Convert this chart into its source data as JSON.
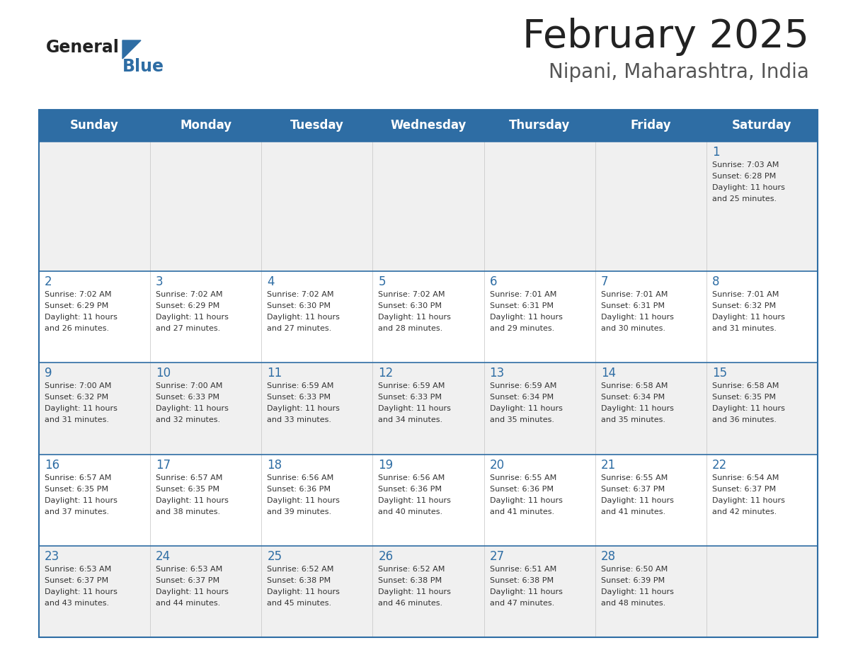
{
  "title": "February 2025",
  "subtitle": "Nipani, Maharashtra, India",
  "header_bg_color": "#2E6DA4",
  "header_text_color": "#FFFFFF",
  "cell_bg_color_odd": "#F0F0F0",
  "cell_bg_color_even": "#FFFFFF",
  "day_number_color": "#2E6DA4",
  "cell_text_color": "#333333",
  "border_color": "#2E6DA4",
  "days_of_week": [
    "Sunday",
    "Monday",
    "Tuesday",
    "Wednesday",
    "Thursday",
    "Friday",
    "Saturday"
  ],
  "calendar_data": [
    [
      null,
      null,
      null,
      null,
      null,
      null,
      {
        "day": 1,
        "sunrise": "7:03 AM",
        "sunset": "6:28 PM",
        "daylight": "11 hours and 25 minutes."
      }
    ],
    [
      {
        "day": 2,
        "sunrise": "7:02 AM",
        "sunset": "6:29 PM",
        "daylight": "11 hours and 26 minutes."
      },
      {
        "day": 3,
        "sunrise": "7:02 AM",
        "sunset": "6:29 PM",
        "daylight": "11 hours and 27 minutes."
      },
      {
        "day": 4,
        "sunrise": "7:02 AM",
        "sunset": "6:30 PM",
        "daylight": "11 hours and 27 minutes."
      },
      {
        "day": 5,
        "sunrise": "7:02 AM",
        "sunset": "6:30 PM",
        "daylight": "11 hours and 28 minutes."
      },
      {
        "day": 6,
        "sunrise": "7:01 AM",
        "sunset": "6:31 PM",
        "daylight": "11 hours and 29 minutes."
      },
      {
        "day": 7,
        "sunrise": "7:01 AM",
        "sunset": "6:31 PM",
        "daylight": "11 hours and 30 minutes."
      },
      {
        "day": 8,
        "sunrise": "7:01 AM",
        "sunset": "6:32 PM",
        "daylight": "11 hours and 31 minutes."
      }
    ],
    [
      {
        "day": 9,
        "sunrise": "7:00 AM",
        "sunset": "6:32 PM",
        "daylight": "11 hours and 31 minutes."
      },
      {
        "day": 10,
        "sunrise": "7:00 AM",
        "sunset": "6:33 PM",
        "daylight": "11 hours and 32 minutes."
      },
      {
        "day": 11,
        "sunrise": "6:59 AM",
        "sunset": "6:33 PM",
        "daylight": "11 hours and 33 minutes."
      },
      {
        "day": 12,
        "sunrise": "6:59 AM",
        "sunset": "6:33 PM",
        "daylight": "11 hours and 34 minutes."
      },
      {
        "day": 13,
        "sunrise": "6:59 AM",
        "sunset": "6:34 PM",
        "daylight": "11 hours and 35 minutes."
      },
      {
        "day": 14,
        "sunrise": "6:58 AM",
        "sunset": "6:34 PM",
        "daylight": "11 hours and 35 minutes."
      },
      {
        "day": 15,
        "sunrise": "6:58 AM",
        "sunset": "6:35 PM",
        "daylight": "11 hours and 36 minutes."
      }
    ],
    [
      {
        "day": 16,
        "sunrise": "6:57 AM",
        "sunset": "6:35 PM",
        "daylight": "11 hours and 37 minutes."
      },
      {
        "day": 17,
        "sunrise": "6:57 AM",
        "sunset": "6:35 PM",
        "daylight": "11 hours and 38 minutes."
      },
      {
        "day": 18,
        "sunrise": "6:56 AM",
        "sunset": "6:36 PM",
        "daylight": "11 hours and 39 minutes."
      },
      {
        "day": 19,
        "sunrise": "6:56 AM",
        "sunset": "6:36 PM",
        "daylight": "11 hours and 40 minutes."
      },
      {
        "day": 20,
        "sunrise": "6:55 AM",
        "sunset": "6:36 PM",
        "daylight": "11 hours and 41 minutes."
      },
      {
        "day": 21,
        "sunrise": "6:55 AM",
        "sunset": "6:37 PM",
        "daylight": "11 hours and 41 minutes."
      },
      {
        "day": 22,
        "sunrise": "6:54 AM",
        "sunset": "6:37 PM",
        "daylight": "11 hours and 42 minutes."
      }
    ],
    [
      {
        "day": 23,
        "sunrise": "6:53 AM",
        "sunset": "6:37 PM",
        "daylight": "11 hours and 43 minutes."
      },
      {
        "day": 24,
        "sunrise": "6:53 AM",
        "sunset": "6:37 PM",
        "daylight": "11 hours and 44 minutes."
      },
      {
        "day": 25,
        "sunrise": "6:52 AM",
        "sunset": "6:38 PM",
        "daylight": "11 hours and 45 minutes."
      },
      {
        "day": 26,
        "sunrise": "6:52 AM",
        "sunset": "6:38 PM",
        "daylight": "11 hours and 46 minutes."
      },
      {
        "day": 27,
        "sunrise": "6:51 AM",
        "sunset": "6:38 PM",
        "daylight": "11 hours and 47 minutes."
      },
      {
        "day": 28,
        "sunrise": "6:50 AM",
        "sunset": "6:39 PM",
        "daylight": "11 hours and 48 minutes."
      },
      null
    ]
  ],
  "logo_general_color": "#222222",
  "logo_blue_color": "#2E6DA4",
  "logo_triangle_color": "#2E6DA4",
  "title_color": "#222222",
  "subtitle_color": "#555555"
}
